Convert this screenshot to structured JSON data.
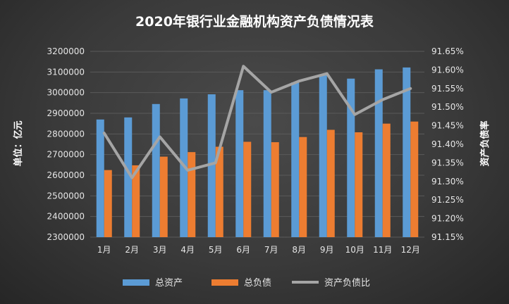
{
  "chart_data": {
    "type": "bar",
    "title": "2020年银行业金融机构资产负债情况表",
    "categories": [
      "1月",
      "2月",
      "3月",
      "4月",
      "5月",
      "6月",
      "7月",
      "8月",
      "9月",
      "10月",
      "11月",
      "12月"
    ],
    "ylabel": "单位：亿元",
    "y2label": "资产负债率",
    "ylim": [
      2300000,
      3200000
    ],
    "y_ticks": [
      "3200000",
      "3100000",
      "3000000",
      "2900000",
      "2800000",
      "2700000",
      "2600000",
      "2500000",
      "2400000",
      "2300000"
    ],
    "y2lim": [
      91.15,
      91.65
    ],
    "y2_ticks": [
      "91.65%",
      "91.60%",
      "91.55%",
      "91.50%",
      "91.45%",
      "91.40%",
      "91.35%",
      "91.30%",
      "91.25%",
      "91.20%",
      "91.15%"
    ],
    "grid": true,
    "legend_position": "bottom",
    "series": [
      {
        "name": "总资产",
        "axis": "left",
        "type": "bar",
        "color": "#5b9bd5",
        "values": [
          2870000,
          2880000,
          2945000,
          2972000,
          2992000,
          3012000,
          3012000,
          3050000,
          3085000,
          3068000,
          3113000,
          3122000
        ]
      },
      {
        "name": "总负债",
        "axis": "left",
        "type": "bar",
        "color": "#ed7d31",
        "values": [
          2625000,
          2648000,
          2690000,
          2712000,
          2738000,
          2762000,
          2760000,
          2785000,
          2820000,
          2808000,
          2850000,
          2860000
        ]
      },
      {
        "name": "资产负债比",
        "axis": "right",
        "type": "line",
        "color": "#a5a5a5",
        "values": [
          91.43,
          91.31,
          91.42,
          91.33,
          91.35,
          91.61,
          91.54,
          91.57,
          91.59,
          91.48,
          91.52,
          91.55
        ]
      }
    ]
  }
}
